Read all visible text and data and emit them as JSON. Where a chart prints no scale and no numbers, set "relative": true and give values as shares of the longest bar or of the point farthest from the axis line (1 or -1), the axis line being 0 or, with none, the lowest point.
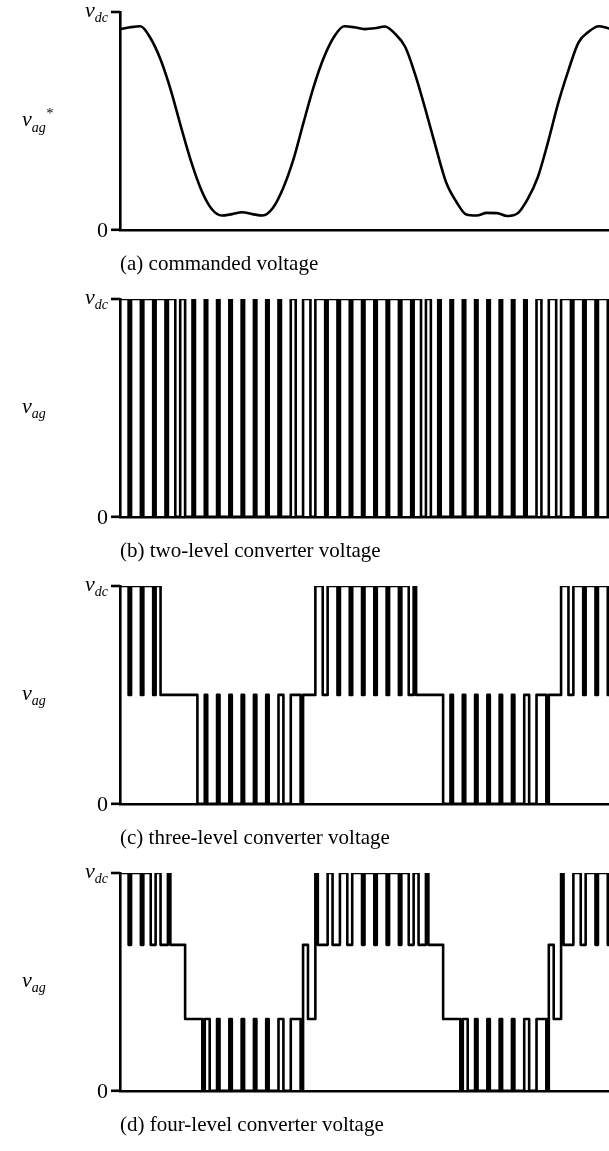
{
  "chart_data": [
    {
      "type": "line",
      "title": "(a) commanded voltage",
      "ylabel": "v$_{ag}$$^{*}$",
      "relative": true,
      "annotations": [
        "v$_{dc}$",
        "0"
      ],
      "grid": false,
      "legend": false,
      "categories": [
        null,
        null,
        null,
        null,
        null,
        null,
        null,
        null,
        null,
        null,
        null,
        null,
        null,
        null,
        null,
        null,
        null,
        null,
        null,
        null,
        null,
        null,
        null,
        null,
        null,
        null,
        null,
        null,
        null,
        null,
        null,
        null,
        null,
        null,
        null,
        null,
        null,
        null,
        null,
        null,
        null,
        null,
        null,
        null,
        null,
        null,
        null,
        null,
        null
      ],
      "series": [
        {
          "color": "#000000",
          "values": [
            0.986,
            0.995,
            1,
            0.941,
            0.834,
            0.684,
            0.503,
            0.332,
            0.193,
            0.102,
            0.07,
            0.077,
            0.086,
            0.077,
            0.07,
            0.107,
            0.203,
            0.342,
            0.524,
            0.701,
            0.845,
            0.947,
            1,
            0.995,
            0.986,
            0.99,
            0.999,
            0.963,
            0.898,
            0.759,
            0.588,
            0.406,
            0.235,
            0.139,
            0.075,
            0.07,
            0.083,
            0.082,
            0.068,
            0.08,
            0.15,
            0.257,
            0.428,
            0.62,
            0.781,
            0.92,
            0.973,
            1,
            0.989
          ]
        }
      ]
    },
    {
      "type": "step",
      "title": "(b) two-level converter voltage",
      "ylabel": "v$_{ag}$",
      "relative": true,
      "annotations": [
        "v$_{dc}$",
        "0"
      ],
      "grid": false,
      "legend": false,
      "categories": [
        null,
        null,
        null,
        null,
        null,
        null,
        null,
        null,
        null,
        null,
        null,
        null,
        null,
        null,
        null,
        null,
        null,
        null,
        null,
        null,
        null,
        null,
        null,
        null,
        null,
        null,
        null,
        null,
        null,
        null,
        null,
        null,
        null,
        null,
        null,
        null,
        null,
        null,
        null,
        null,
        null,
        null,
        null,
        null,
        null,
        null,
        null,
        null,
        null,
        null,
        null,
        null,
        null,
        null,
        null,
        null,
        null,
        null,
        null,
        null,
        null,
        null,
        null,
        null,
        null,
        null,
        null,
        null,
        null,
        null,
        null,
        null,
        null,
        null,
        null,
        null,
        null,
        null,
        null,
        null,
        null,
        null,
        null,
        null,
        null,
        null,
        null,
        null,
        null,
        null,
        null,
        null,
        null,
        null,
        null,
        null,
        null,
        null,
        null,
        null,
        null,
        null,
        null,
        null,
        null,
        null,
        null,
        null,
        null,
        null,
        null,
        null,
        null,
        null,
        null,
        null,
        null,
        null,
        null,
        null,
        null,
        null,
        null,
        null,
        null,
        null,
        null,
        null,
        null,
        null,
        null,
        null,
        null,
        null,
        null,
        null,
        null,
        null,
        null,
        null,
        null,
        null,
        null,
        null,
        null,
        null,
        null,
        null,
        null,
        null,
        null,
        null,
        null,
        null,
        null,
        null,
        null,
        null,
        null,
        null,
        null,
        null,
        null,
        null,
        null,
        null,
        null,
        null,
        null,
        null,
        null,
        null,
        null,
        null,
        null,
        null,
        null,
        null,
        null,
        null,
        null,
        null,
        null,
        null,
        null,
        null,
        null,
        null,
        null,
        null,
        null,
        null,
        null,
        null,
        null,
        null,
        null,
        null,
        null,
        null
      ],
      "series": [
        {
          "color": "#000000",
          "values": [
            1,
            1,
            1,
            1,
            0,
            1,
            1,
            1,
            1,
            0,
            1,
            1,
            1,
            1,
            0,
            1,
            1,
            1,
            1,
            0,
            1,
            1,
            1,
            0,
            0,
            1,
            1,
            0,
            0,
            0,
            1,
            0,
            0,
            0,
            0,
            1,
            0,
            0,
            0,
            0,
            1,
            0,
            0,
            0,
            0,
            1,
            0,
            0,
            0,
            0,
            1,
            0,
            0,
            0,
            0,
            1,
            0,
            0,
            0,
            0,
            1,
            0,
            0,
            0,
            0,
            1,
            0,
            0,
            0,
            0,
            1,
            1,
            0,
            0,
            0,
            1,
            1,
            1,
            0,
            0,
            1,
            1,
            1,
            1,
            0,
            1,
            1,
            1,
            1,
            0,
            1,
            1,
            1,
            1,
            0,
            1,
            1,
            1,
            1,
            0,
            1,
            1,
            1,
            1,
            0,
            1,
            1,
            1,
            1,
            0,
            1,
            1,
            1,
            1,
            0,
            1,
            1,
            1,
            1,
            0,
            1,
            1,
            1,
            0,
            0,
            1,
            1,
            0,
            0,
            0,
            1,
            0,
            0,
            0,
            0,
            1,
            0,
            0,
            0,
            0,
            1,
            0,
            0,
            0,
            0,
            1,
            0,
            0,
            0,
            0,
            1,
            0,
            0,
            0,
            0,
            1,
            0,
            0,
            0,
            0,
            1,
            0,
            0,
            0,
            0,
            1,
            0,
            0,
            0,
            0,
            1,
            1,
            0,
            0,
            0,
            1,
            1,
            1,
            0,
            0,
            1,
            1,
            1,
            1,
            0,
            1,
            1,
            1,
            1,
            0,
            1,
            1,
            1,
            1,
            0,
            1,
            1,
            1,
            1,
            0
          ]
        }
      ]
    },
    {
      "type": "step",
      "title": "(c) three-level converter voltage",
      "ylabel": "v$_{ag}$",
      "relative": true,
      "annotations": [
        "v$_{dc}$",
        "0"
      ],
      "grid": false,
      "legend": false,
      "categories": [
        null,
        null,
        null,
        null,
        null,
        null,
        null,
        null,
        null,
        null,
        null,
        null,
        null,
        null,
        null,
        null,
        null,
        null,
        null,
        null,
        null,
        null,
        null,
        null,
        null,
        null,
        null,
        null,
        null,
        null,
        null,
        null,
        null,
        null,
        null,
        null,
        null,
        null,
        null,
        null,
        null,
        null,
        null,
        null,
        null,
        null,
        null,
        null,
        null,
        null,
        null,
        null,
        null,
        null,
        null,
        null,
        null,
        null,
        null,
        null,
        null,
        null,
        null,
        null,
        null,
        null,
        null,
        null,
        null,
        null,
        null,
        null,
        null,
        null,
        null,
        null,
        null,
        null,
        null,
        null,
        null,
        null,
        null,
        null,
        null,
        null,
        null,
        null,
        null,
        null,
        null,
        null,
        null,
        null,
        null,
        null,
        null,
        null,
        null,
        null,
        null,
        null,
        null,
        null,
        null,
        null,
        null,
        null,
        null,
        null,
        null,
        null,
        null,
        null,
        null,
        null,
        null,
        null,
        null,
        null,
        null,
        null,
        null,
        null,
        null,
        null,
        null,
        null,
        null,
        null,
        null,
        null,
        null,
        null,
        null,
        null,
        null,
        null,
        null,
        null,
        null,
        null,
        null,
        null,
        null,
        null,
        null,
        null,
        null,
        null,
        null,
        null,
        null,
        null,
        null,
        null,
        null,
        null,
        null,
        null,
        null,
        null,
        null,
        null,
        null,
        null,
        null,
        null,
        null,
        null,
        null,
        null,
        null,
        null,
        null,
        null,
        null,
        null,
        null,
        null,
        null,
        null,
        null,
        null,
        null,
        null,
        null,
        null,
        null,
        null,
        null,
        null,
        null,
        null,
        null,
        null,
        null,
        null,
        null,
        null
      ],
      "series": [
        {
          "color": "#000000",
          "values": [
            1,
            1,
            1,
            1,
            0.5,
            1,
            1,
            1,
            1,
            0.5,
            1,
            1,
            1,
            1,
            0.5,
            1,
            1,
            0.5,
            0.5,
            0.5,
            0.5,
            0.5,
            0.5,
            0.5,
            0.5,
            0.5,
            0.5,
            0.5,
            0.5,
            0.5,
            0.5,
            0.5,
            0,
            0,
            0,
            0.5,
            0,
            0,
            0,
            0,
            0.5,
            0,
            0,
            0,
            0,
            0.5,
            0,
            0,
            0,
            0,
            0.5,
            0,
            0,
            0,
            0,
            0.5,
            0,
            0,
            0,
            0,
            0.5,
            0,
            0,
            0,
            0,
            0.5,
            0.5,
            0,
            0,
            0,
            0.5,
            0.5,
            0.5,
            0.5,
            0,
            0.5,
            0.5,
            0.5,
            0.5,
            0.5,
            1,
            1,
            1,
            0.5,
            0.5,
            1,
            1,
            1,
            1,
            0.5,
            1,
            1,
            1,
            1,
            0.5,
            1,
            1,
            1,
            1,
            0.5,
            1,
            1,
            1,
            1,
            0.5,
            1,
            1,
            1,
            1,
            0.5,
            1,
            1,
            1,
            1,
            0.5,
            1,
            1,
            1,
            0.5,
            0.5,
            1,
            0.5,
            0.5,
            0.5,
            0.5,
            0.5,
            0.5,
            0.5,
            0.5,
            0.5,
            0.5,
            0.5,
            0,
            0,
            0,
            0.5,
            0,
            0,
            0,
            0,
            0.5,
            0,
            0,
            0,
            0,
            0.5,
            0,
            0,
            0,
            0,
            0.5,
            0,
            0,
            0,
            0,
            0.5,
            0,
            0,
            0,
            0,
            0.5,
            0,
            0,
            0,
            0,
            0.5,
            0.5,
            0,
            0,
            0,
            0.5,
            0.5,
            0.5,
            0.5,
            0,
            0.5,
            0.5,
            0.5,
            0.5,
            0.5,
            1,
            1,
            1,
            0.5,
            0.5,
            1,
            1,
            1,
            1,
            0.5,
            1,
            1,
            1,
            1,
            0.5,
            1,
            1,
            1,
            1,
            0.5
          ]
        }
      ]
    },
    {
      "type": "step",
      "title": "(d) four-level converter voltage",
      "ylabel": "v$_{ag}$",
      "relative": true,
      "annotations": [
        "v$_{dc}$",
        "0"
      ],
      "grid": false,
      "legend": false,
      "categories": [
        null,
        null,
        null,
        null,
        null,
        null,
        null,
        null,
        null,
        null,
        null,
        null,
        null,
        null,
        null,
        null,
        null,
        null,
        null,
        null,
        null,
        null,
        null,
        null,
        null,
        null,
        null,
        null,
        null,
        null,
        null,
        null,
        null,
        null,
        null,
        null,
        null,
        null,
        null,
        null,
        null,
        null,
        null,
        null,
        null,
        null,
        null,
        null,
        null,
        null,
        null,
        null,
        null,
        null,
        null,
        null,
        null,
        null,
        null,
        null,
        null,
        null,
        null,
        null,
        null,
        null,
        null,
        null,
        null,
        null,
        null,
        null,
        null,
        null,
        null,
        null,
        null,
        null,
        null,
        null,
        null,
        null,
        null,
        null,
        null,
        null,
        null,
        null,
        null,
        null,
        null,
        null,
        null,
        null,
        null,
        null,
        null,
        null,
        null,
        null,
        null,
        null,
        null,
        null,
        null,
        null,
        null,
        null,
        null,
        null,
        null,
        null,
        null,
        null,
        null,
        null,
        null,
        null,
        null,
        null,
        null,
        null,
        null,
        null,
        null,
        null,
        null,
        null,
        null,
        null,
        null,
        null,
        null,
        null,
        null,
        null,
        null,
        null,
        null,
        null,
        null,
        null,
        null,
        null,
        null,
        null,
        null,
        null,
        null,
        null,
        null,
        null,
        null,
        null,
        null,
        null,
        null,
        null,
        null,
        null,
        null,
        null,
        null,
        null,
        null,
        null,
        null,
        null,
        null,
        null,
        null,
        null,
        null,
        null,
        null,
        null,
        null,
        null,
        null,
        null,
        null,
        null,
        null,
        null,
        null,
        null,
        null,
        null,
        null,
        null,
        null,
        null,
        null,
        null,
        null,
        null,
        null,
        null,
        null,
        null
      ],
      "series": [
        {
          "color": "#000000",
          "values": [
            1,
            1,
            1,
            1,
            0.67,
            1,
            1,
            1,
            1,
            0.67,
            1,
            1,
            1,
            0.67,
            0.67,
            1,
            1,
            0.67,
            0.67,
            0.67,
            1,
            0.67,
            0.67,
            0.67,
            0.67,
            0.67,
            0.67,
            0.33,
            0.33,
            0.33,
            0.33,
            0.33,
            0.33,
            0.33,
            0,
            0.33,
            0.33,
            0,
            0,
            0,
            0.33,
            0,
            0,
            0,
            0,
            0.33,
            0,
            0,
            0,
            0,
            0.33,
            0,
            0,
            0,
            0,
            0.33,
            0,
            0,
            0,
            0,
            0.33,
            0,
            0,
            0,
            0,
            0.33,
            0.33,
            0,
            0,
            0,
            0.33,
            0.33,
            0.33,
            0.33,
            0,
            0.67,
            0.67,
            0.33,
            0.33,
            0.33,
            1,
            0.67,
            0.67,
            0.67,
            0.67,
            1,
            1,
            0.67,
            0.67,
            0.67,
            1,
            1,
            1,
            0.67,
            0.67,
            1,
            1,
            1,
            1,
            0.67,
            1,
            1,
            1,
            1,
            0.67,
            1,
            1,
            1,
            1,
            0.67,
            1,
            1,
            1,
            1,
            0.67,
            1,
            1,
            1,
            0.67,
            0.67,
            1,
            1,
            0.67,
            0.67,
            0.67,
            1,
            0.67,
            0.67,
            0.67,
            0.67,
            0.67,
            0.67,
            0.33,
            0.33,
            0.33,
            0.33,
            0.33,
            0.33,
            0.33,
            0,
            0.33,
            0.33,
            0,
            0,
            0,
            0.33,
            0,
            0,
            0,
            0,
            0.33,
            0,
            0,
            0,
            0,
            0.33,
            0,
            0,
            0,
            0,
            0.33,
            0,
            0,
            0,
            0,
            0.33,
            0.33,
            0,
            0,
            0,
            0.33,
            0.33,
            0.33,
            0.33,
            0,
            0.67,
            0.67,
            0.33,
            0.33,
            0.33,
            1,
            0.67,
            0.67,
            0.67,
            0.67,
            1,
            1,
            1,
            0.67,
            0.67,
            1,
            1,
            1,
            1,
            0.67,
            1,
            1,
            1,
            1,
            0.67
          ]
        }
      ]
    }
  ]
}
